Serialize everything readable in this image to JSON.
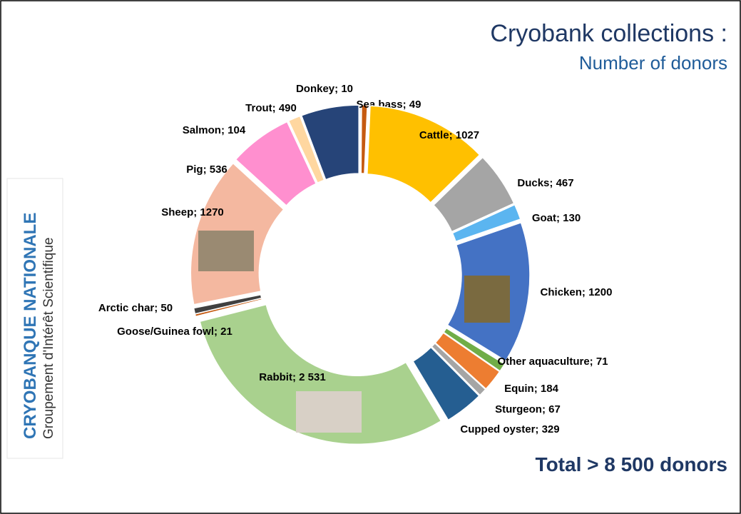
{
  "title": "Cryobank collections :",
  "subtitle": "Number of donors",
  "logo": {
    "name": "CRYOBANQUE NATIONALE",
    "tagline": "Groupement d'Intérêt Scientifique"
  },
  "total": "Total  > 8 500 donors",
  "chart_data": {
    "type": "donut",
    "separator": "; ",
    "categories": [
      "Donkey",
      "Sea bass",
      "Cattle",
      "Ducks",
      "Goat",
      "Chicken",
      "Other aquaculture",
      "Equin",
      "Sturgeon",
      "Cupped oyster",
      "Rabbit",
      "Goose/Guinea fowl",
      "Arctic char",
      "Sheep",
      "Pig",
      "Salmon",
      "Trout"
    ],
    "values": [
      10,
      49,
      1027,
      467,
      130,
      1200,
      71,
      184,
      67,
      329,
      2531,
      21,
      50,
      1270,
      536,
      104,
      490
    ],
    "value_labels": [
      "10",
      "49",
      "1027",
      "467",
      "130",
      "1200",
      "71",
      "184",
      "67",
      "329",
      "2 531",
      "21",
      "50",
      "1270",
      "536",
      "104",
      "490"
    ],
    "colors": [
      "#264478",
      "#c55a11",
      "#ffc000",
      "#a5a5a5",
      "#5bb5f0",
      "#4472c4",
      "#70ad47",
      "#ed7d31",
      "#a5a5a5",
      "#255e91",
      "#a9d18e",
      "#c55a11",
      "#404040",
      "#f4b8a0",
      "#ff8fcf",
      "#ffd7a0",
      "#264478"
    ]
  }
}
